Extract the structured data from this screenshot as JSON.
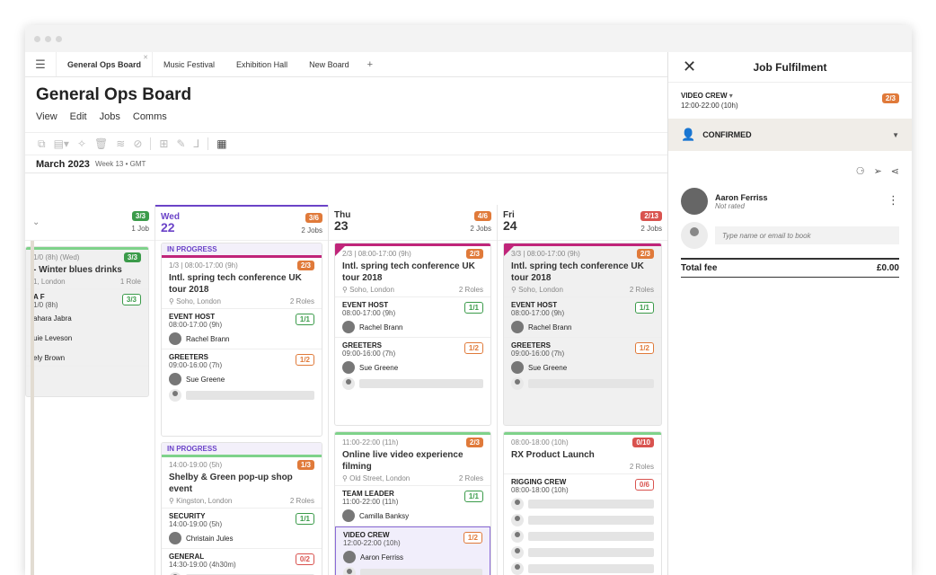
{
  "tabs": [
    {
      "label": "General Ops Board"
    },
    {
      "label": "Music Festival"
    },
    {
      "label": "Exhibition Hall"
    },
    {
      "label": "New Board"
    }
  ],
  "tab_add": "+",
  "board_title": "General Ops Board",
  "menu": [
    "View",
    "Edit",
    "Jobs",
    "Comms"
  ],
  "month": "March 2023",
  "week": "Week 13 • GMT",
  "columns": {
    "tue": {
      "count": "3/3",
      "jobs": "1 Job",
      "card": {
        "meta": "1/0 (8h) (Wed)",
        "badge": "3/3",
        "title": "- Winter blues drinks",
        "loc": "1, London",
        "roles_label": "1 Role",
        "role": {
          "name": "A F",
          "time": "1/0 (8h)",
          "badge": "3/3",
          "people": [
            "ahara Jabra",
            "uie Leveson",
            "ely Brown"
          ]
        }
      }
    },
    "wed": {
      "dow": "Wed",
      "day": "22",
      "count": "3/6",
      "jobs": "2 Jobs",
      "card1": {
        "status": "IN PROGRESS",
        "meta": "1/3 | 08:00-17:00 (9h)",
        "badge": "2/3",
        "title": "Intl. spring tech conference UK tour 2018",
        "loc": "Soho, London",
        "roles": "2 Roles",
        "role1": {
          "name": "EVENT HOST",
          "time": "08:00-17:00 (9h)",
          "badge": "1/1",
          "person": "Rachel Brann"
        },
        "role2": {
          "name": "GREETERS",
          "time": "09:00-16:00 (7h)",
          "badge": "1/2",
          "person": "Sue Greene"
        }
      },
      "card2": {
        "status": "IN PROGRESS",
        "meta": "14:00-19:00 (5h)",
        "badge": "1/3",
        "title": "Shelby & Green pop-up shop event",
        "loc": "Kingston, London",
        "roles": "2 Roles",
        "role1": {
          "name": "SECURITY",
          "time": "14:00-19:00 (5h)",
          "badge": "1/1",
          "person": "Christain Jules"
        },
        "role2": {
          "name": "GENERAL",
          "time": "14:30-19:00 (4h30m)",
          "badge": "0/2"
        }
      }
    },
    "thu": {
      "dow": "Thu",
      "day": "23",
      "count": "4/6",
      "jobs": "2 Jobs",
      "card1": {
        "meta": "2/3 | 08:00-17:00 (9h)",
        "badge": "2/3",
        "title": "Intl. spring tech conference UK tour 2018",
        "loc": "Soho, London",
        "roles": "2 Roles",
        "role1": {
          "name": "EVENT HOST",
          "time": "08:00-17:00 (9h)",
          "badge": "1/1",
          "person": "Rachel Brann"
        },
        "role2": {
          "name": "GREETERS",
          "time": "09:00-16:00 (7h)",
          "badge": "1/2",
          "person": "Sue Greene"
        }
      },
      "card2": {
        "meta": "11:00-22:00 (11h)",
        "badge": "2/3",
        "title": "Online live video experience filming",
        "loc": "Old Street, London",
        "roles": "2 Roles",
        "role1": {
          "name": "TEAM LEADER",
          "time": "11:00-22:00 (11h)",
          "badge": "1/1",
          "person": "Camilla Banksy"
        },
        "role2": {
          "name": "VIDEO CREW",
          "time": "12:00-22:00 (10h)",
          "badge": "1/2",
          "person": "Aaron Ferriss"
        }
      }
    },
    "fri": {
      "dow": "Fri",
      "day": "24",
      "count": "2/13",
      "jobs": "2 Jobs",
      "card1": {
        "meta": "3/3 | 08:00-17:00 (9h)",
        "badge": "2/3",
        "title": "Intl. spring tech conference UK tour 2018",
        "loc": "Soho, London",
        "roles": "2 Roles",
        "role1": {
          "name": "EVENT HOST",
          "time": "08:00-17:00 (9h)",
          "badge": "1/1",
          "person": "Rachel Brann"
        },
        "role2": {
          "name": "GREETERS",
          "time": "09:00-16:00 (7h)",
          "badge": "1/2",
          "person": "Sue Greene"
        }
      },
      "card2": {
        "meta": "08:00-18:00 (10h)",
        "badge": "0/10",
        "title": "RX Product Launch",
        "roles": "2 Roles",
        "role1": {
          "name": "RIGGING CREW",
          "time": "08:00-18:00 (10h)",
          "badge": "0/6"
        }
      }
    }
  },
  "panel": {
    "title": "Job Fulfilment",
    "job_name": "VIDEO CREW",
    "job_time": "12:00-22:00 (10h)",
    "job_badge": "2/3",
    "status": "CONFIRMED",
    "person_name": "Aaron Ferriss",
    "person_rating": "Not rated",
    "input_placeholder": "Type name or email to book",
    "total_label": "Total fee",
    "total_value": "£0.00"
  }
}
